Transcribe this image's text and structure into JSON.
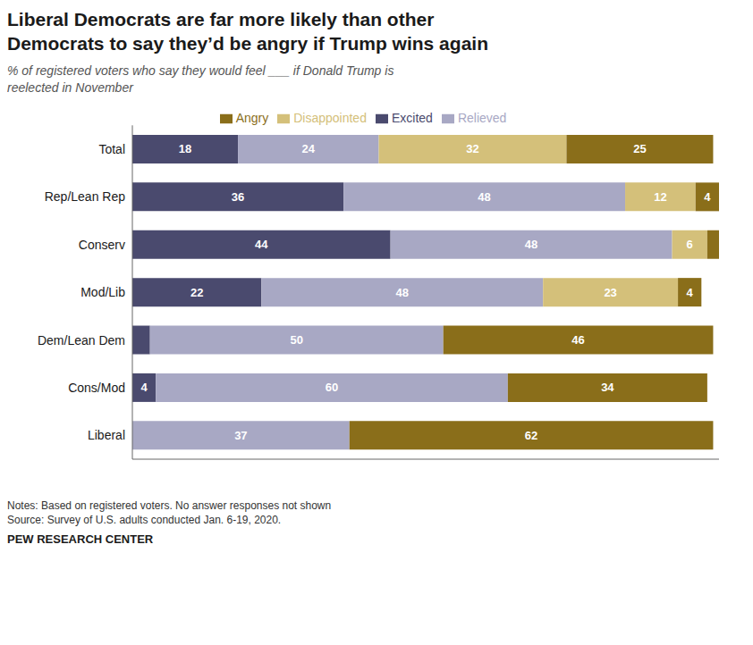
{
  "chart_data": {
    "type": "bar",
    "orientation": "horizontal",
    "stacked": true,
    "title": "Liberal Democrats are far more likely than other\nDemocrats to say they’d be angry if Trump wins again",
    "subtitle": "% of registered voters who say they would feel ___ if Donald Trump is\nreelected in November",
    "annotations": [
      "Notes: Based on registered voters. No answer responses not shown\nSource: Survey of U.S. adults conducted Jan. 6-19, 2020.",
      "PEW RESEARCH CENTER"
    ],
    "categories": [
      "Total",
      "Rep/Lean Rep",
      "Conserv",
      "Mod/Lib",
      "Dem/Lean Dem",
      "Cons/Mod",
      "Liberal"
    ],
    "series": [
      {
        "name": "Excited",
        "color": "#4a4a6e",
        "values": [
          18,
          36,
          44,
          22,
          3,
          4,
          0
        ],
        "value_labels": [
          "18",
          "36",
          "44",
          "22",
          null,
          "4",
          null
        ]
      },
      {
        "name": "Relieved",
        "color": "#a8a8c4",
        "values": [
          24,
          48,
          48,
          48,
          50,
          60,
          37
        ],
        "value_labels": [
          "24",
          "48",
          "48",
          "48",
          "50",
          "60",
          "37"
        ]
      },
      {
        "name": "Disappointed",
        "color": "#d4c07a",
        "values": [
          32,
          12,
          6,
          23,
          0,
          0,
          0
        ],
        "value_labels": [
          "32",
          "12",
          "6",
          "23",
          null,
          null,
          null
        ]
      },
      {
        "name": "Angry",
        "color": "#8a6e1a",
        "values": [
          25,
          4,
          2,
          4,
          46,
          34,
          62
        ],
        "value_labels": [
          "25",
          "4",
          null,
          "4",
          "46",
          "34",
          "62"
        ]
      }
    ],
    "xlim": [
      0,
      100
    ],
    "data_labels": true,
    "legend": "top",
    "grid": false,
    "tick_labels": "y"
  }
}
